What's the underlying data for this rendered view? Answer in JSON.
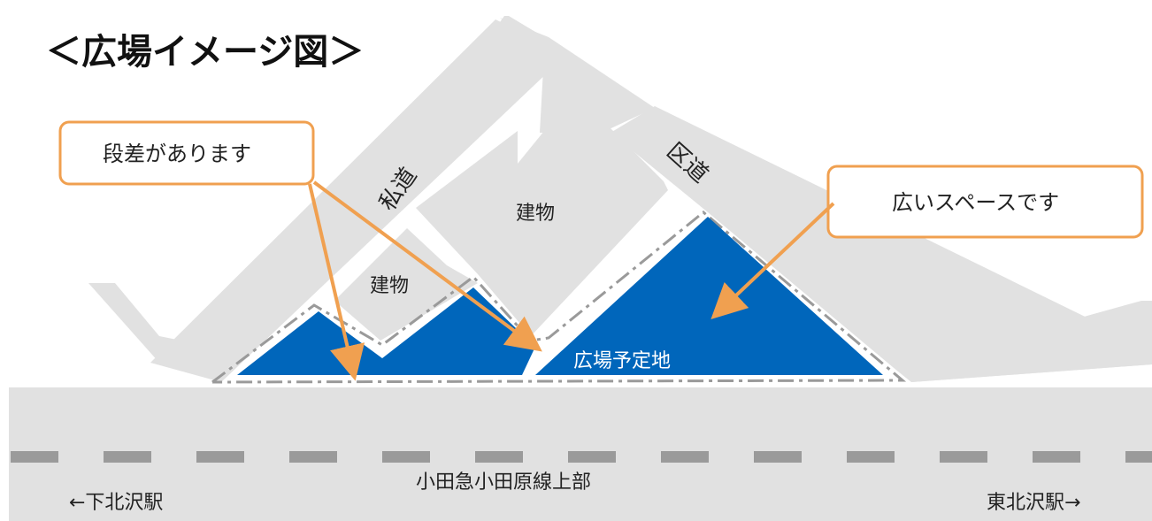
{
  "title": "＜広場イメージ図＞",
  "roads": {
    "private_road": "私道",
    "ward_road": "区道"
  },
  "buildings": {
    "building_large": "建物",
    "building_small": "建物"
  },
  "plaza": {
    "label": "広場予定地"
  },
  "callouts": {
    "steps": "段差があります",
    "wide_space": "広いスペースです"
  },
  "railway": {
    "label": "小田急小田原線上部",
    "left_station": "←下北沢駅",
    "right_station": "東北沢駅→"
  },
  "colors": {
    "plaza_fill": "#0066bb",
    "callout_stroke": "#f0a050",
    "road_fill": "#e1e1e1",
    "boundary_line": "#9a9a9a",
    "rail_dash": "#9a9a9a"
  },
  "icons": {
    "arrow": "orange-arrow-icon"
  }
}
